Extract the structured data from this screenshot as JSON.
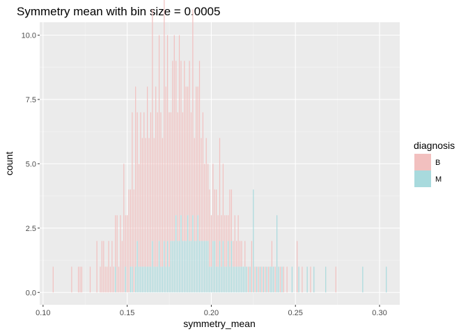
{
  "chart_data": {
    "type": "bar",
    "subtype": "stacked histogram",
    "title": "Symmetry mean with bin size = 0.0005",
    "xlabel": "symmetry_mean",
    "ylabel": "count",
    "binwidth": 0.0005,
    "xlim": [
      0.1,
      0.31
    ],
    "ylim": [
      0,
      10
    ],
    "x_ticks": [
      0.1,
      0.15,
      0.2,
      0.25,
      0.3
    ],
    "x_tick_labels": [
      "0.10",
      "0.15",
      "0.20",
      "0.25",
      "0.30"
    ],
    "y_ticks": [
      0,
      2.5,
      5,
      7.5,
      10
    ],
    "y_tick_labels": [
      "0.0",
      "2.5",
      "5.0",
      "7.5",
      "10.0"
    ],
    "grid": true,
    "legend": {
      "title": "diagnosis",
      "position": "right",
      "entries": [
        {
          "label": "B",
          "color": "#f2c0bf"
        },
        {
          "label": "M",
          "color": "#a8dadd"
        }
      ]
    },
    "series": [
      {
        "name": "B",
        "color": "#f2c0bf",
        "points": [
          [
            0.106,
            1
          ],
          [
            0.117,
            1
          ],
          [
            0.121,
            1
          ],
          [
            0.122,
            1
          ],
          [
            0.123,
            1
          ],
          [
            0.128,
            1
          ],
          [
            0.132,
            2
          ],
          [
            0.134,
            1
          ],
          [
            0.135,
            2
          ],
          [
            0.136,
            2
          ],
          [
            0.137,
            1
          ],
          [
            0.138,
            1
          ],
          [
            0.139,
            2
          ],
          [
            0.14,
            1
          ],
          [
            0.141,
            2
          ],
          [
            0.142,
            1
          ],
          [
            0.143,
            2
          ],
          [
            0.144,
            3
          ],
          [
            0.145,
            1
          ],
          [
            0.146,
            3
          ],
          [
            0.147,
            2
          ],
          [
            0.148,
            5
          ],
          [
            0.149,
            2
          ],
          [
            0.15,
            3
          ],
          [
            0.151,
            4
          ],
          [
            0.152,
            3
          ],
          [
            0.153,
            6
          ],
          [
            0.154,
            4
          ],
          [
            0.155,
            7
          ],
          [
            0.156,
            5
          ],
          [
            0.157,
            4
          ],
          [
            0.158,
            6
          ],
          [
            0.159,
            5
          ],
          [
            0.16,
            6
          ],
          [
            0.161,
            5
          ],
          [
            0.162,
            7
          ],
          [
            0.163,
            5
          ],
          [
            0.164,
            6
          ],
          [
            0.165,
            9
          ],
          [
            0.166,
            5
          ],
          [
            0.167,
            7
          ],
          [
            0.168,
            6
          ],
          [
            0.169,
            8
          ],
          [
            0.17,
            6
          ],
          [
            0.171,
            5
          ],
          [
            0.172,
            10
          ],
          [
            0.173,
            7
          ],
          [
            0.174,
            8
          ],
          [
            0.175,
            6
          ],
          [
            0.176,
            5
          ],
          [
            0.177,
            7
          ],
          [
            0.178,
            8
          ],
          [
            0.179,
            6
          ],
          [
            0.18,
            5
          ],
          [
            0.181,
            8
          ],
          [
            0.182,
            6
          ],
          [
            0.183,
            5
          ],
          [
            0.184,
            7
          ],
          [
            0.185,
            6
          ],
          [
            0.186,
            5
          ],
          [
            0.187,
            7
          ],
          [
            0.188,
            5
          ],
          [
            0.189,
            8
          ],
          [
            0.19,
            4
          ],
          [
            0.191,
            6
          ],
          [
            0.192,
            5
          ],
          [
            0.193,
            7
          ],
          [
            0.194,
            4
          ],
          [
            0.195,
            5
          ],
          [
            0.196,
            3
          ],
          [
            0.197,
            4
          ],
          [
            0.198,
            3
          ],
          [
            0.199,
            3
          ],
          [
            0.2,
            2
          ],
          [
            0.201,
            3
          ],
          [
            0.202,
            2
          ],
          [
            0.203,
            3
          ],
          [
            0.204,
            2
          ],
          [
            0.205,
            4
          ],
          [
            0.206,
            2
          ],
          [
            0.207,
            3
          ],
          [
            0.208,
            2
          ],
          [
            0.209,
            2
          ],
          [
            0.21,
            1
          ],
          [
            0.211,
            3
          ],
          [
            0.212,
            2
          ],
          [
            0.213,
            1
          ],
          [
            0.214,
            2
          ],
          [
            0.215,
            1
          ],
          [
            0.216,
            2
          ],
          [
            0.217,
            1
          ],
          [
            0.218,
            1
          ],
          [
            0.22,
            1
          ],
          [
            0.222,
            1
          ],
          [
            0.224,
            2
          ],
          [
            0.226,
            1
          ],
          [
            0.228,
            1
          ],
          [
            0.23,
            1
          ],
          [
            0.232,
            1
          ],
          [
            0.234,
            1
          ],
          [
            0.236,
            1
          ],
          [
            0.238,
            1
          ],
          [
            0.241,
            1
          ],
          [
            0.243,
            1
          ],
          [
            0.245,
            1
          ],
          [
            0.251,
            2
          ],
          [
            0.254,
            1
          ],
          [
            0.259,
            1
          ],
          [
            0.274,
            1
          ]
        ]
      },
      {
        "name": "M",
        "color": "#a8dadd",
        "points": [
          [
            0.143,
            1
          ],
          [
            0.149,
            1
          ],
          [
            0.152,
            1
          ],
          [
            0.153,
            1
          ],
          [
            0.155,
            1
          ],
          [
            0.156,
            2
          ],
          [
            0.157,
            1
          ],
          [
            0.158,
            1
          ],
          [
            0.159,
            1
          ],
          [
            0.16,
            1
          ],
          [
            0.161,
            1
          ],
          [
            0.162,
            1
          ],
          [
            0.163,
            1
          ],
          [
            0.164,
            1
          ],
          [
            0.165,
            2
          ],
          [
            0.166,
            1
          ],
          [
            0.167,
            1
          ],
          [
            0.168,
            1
          ],
          [
            0.169,
            2
          ],
          [
            0.17,
            1
          ],
          [
            0.171,
            1
          ],
          [
            0.172,
            2
          ],
          [
            0.173,
            1
          ],
          [
            0.174,
            2
          ],
          [
            0.175,
            1
          ],
          [
            0.176,
            2
          ],
          [
            0.177,
            2
          ],
          [
            0.178,
            2
          ],
          [
            0.179,
            3
          ],
          [
            0.18,
            2
          ],
          [
            0.181,
            2
          ],
          [
            0.182,
            3
          ],
          [
            0.183,
            2
          ],
          [
            0.184,
            2
          ],
          [
            0.185,
            2
          ],
          [
            0.186,
            3
          ],
          [
            0.187,
            2
          ],
          [
            0.188,
            2
          ],
          [
            0.189,
            3
          ],
          [
            0.19,
            2
          ],
          [
            0.191,
            2
          ],
          [
            0.192,
            3
          ],
          [
            0.193,
            2
          ],
          [
            0.194,
            2
          ],
          [
            0.195,
            2
          ],
          [
            0.196,
            2
          ],
          [
            0.197,
            2
          ],
          [
            0.198,
            2
          ],
          [
            0.199,
            1
          ],
          [
            0.2,
            1
          ],
          [
            0.201,
            2
          ],
          [
            0.202,
            2
          ],
          [
            0.203,
            1
          ],
          [
            0.204,
            1
          ],
          [
            0.205,
            2
          ],
          [
            0.206,
            1
          ],
          [
            0.207,
            2
          ],
          [
            0.208,
            1
          ],
          [
            0.209,
            1
          ],
          [
            0.21,
            2
          ],
          [
            0.211,
            1
          ],
          [
            0.212,
            2
          ],
          [
            0.213,
            1
          ],
          [
            0.214,
            1
          ],
          [
            0.215,
            1
          ],
          [
            0.216,
            1
          ],
          [
            0.217,
            1
          ],
          [
            0.218,
            1
          ],
          [
            0.219,
            1
          ],
          [
            0.22,
            1
          ],
          [
            0.221,
            1
          ],
          [
            0.223,
            1
          ],
          [
            0.225,
            4
          ],
          [
            0.227,
            1
          ],
          [
            0.229,
            1
          ],
          [
            0.231,
            1
          ],
          [
            0.233,
            1
          ],
          [
            0.235,
            1
          ],
          [
            0.236,
            1
          ],
          [
            0.237,
            1
          ],
          [
            0.239,
            3
          ],
          [
            0.24,
            1
          ],
          [
            0.242,
            1
          ],
          [
            0.248,
            1
          ],
          [
            0.252,
            1
          ],
          [
            0.257,
            1
          ],
          [
            0.261,
            1
          ],
          [
            0.268,
            1
          ],
          [
            0.29,
            1
          ],
          [
            0.304,
            1
          ]
        ]
      }
    ]
  }
}
